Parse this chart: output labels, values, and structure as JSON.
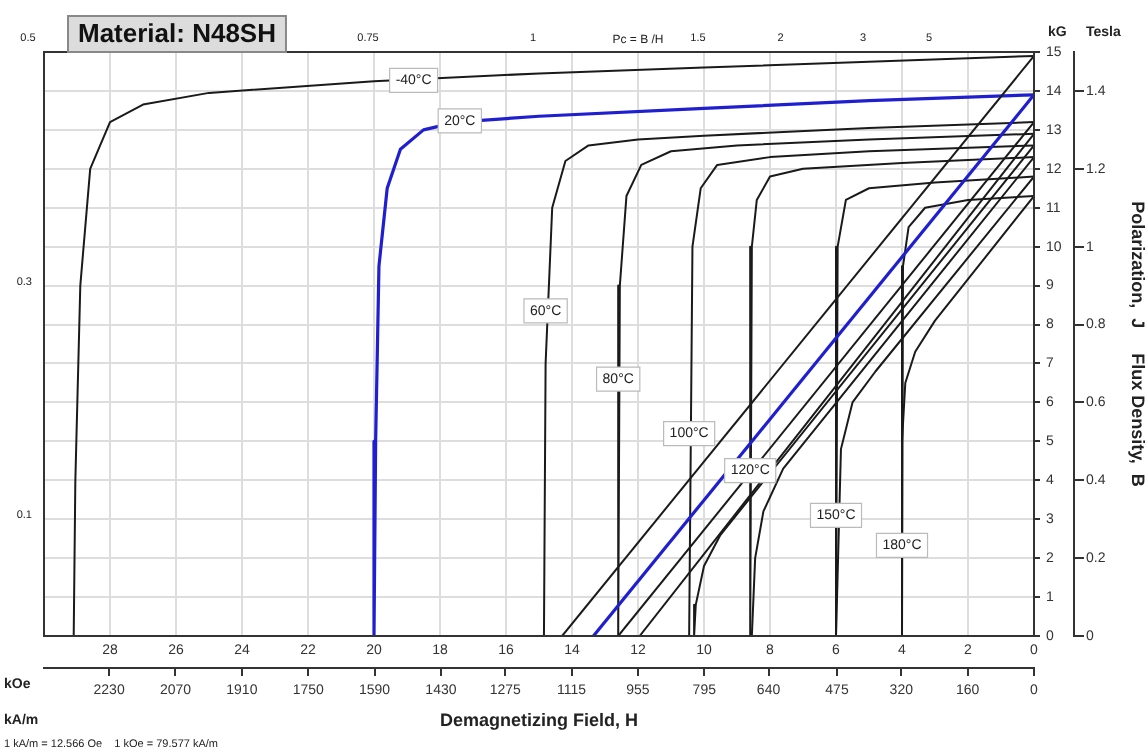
{
  "chart_data": {
    "type": "line",
    "title": "Material: N48SH",
    "xlabel": "Demagnetizing Field, H",
    "y2label": "Polarization,  J     Flux Density,  B",
    "xlim": [
      30,
      0
    ],
    "xticks": [
      28,
      26,
      24,
      22,
      20,
      18,
      16,
      14,
      12,
      10,
      8,
      6,
      4,
      2,
      0
    ],
    "x2lim": [
      2387,
      0
    ],
    "x2ticks": [
      2230,
      2070,
      1910,
      1750,
      1590,
      1430,
      1275,
      1115,
      955,
      795,
      640,
      475,
      320,
      160,
      0
    ],
    "ylim": [
      0,
      15
    ],
    "yticks": [
      0,
      1,
      2,
      3,
      4,
      5,
      6,
      7,
      8,
      9,
      10,
      11,
      12,
      13,
      14,
      15
    ],
    "y2lim": [
      0,
      1.5
    ],
    "y2ticks": [
      0,
      0.2,
      0.4,
      0.6,
      0.8,
      1.0,
      1.2,
      1.4
    ],
    "grid": true,
    "legend": false,
    "marker": "none",
    "line_style": "solid",
    "series": [
      {
        "color": "#1a1a1a",
        "x": [
          0,
          5,
          10,
          15,
          20,
          25,
          27,
          28,
          28.6,
          28.9,
          29.05,
          29.1
        ],
        "values": [
          14.9,
          14.75,
          14.6,
          14.45,
          14.25,
          13.95,
          13.65,
          13.2,
          12,
          9,
          4,
          0
        ]
      },
      {
        "color": "#1a1a1a",
        "x": [
          0,
          14.3
        ],
        "values": [
          14.9,
          0
        ]
      },
      {
        "color": "#1f1fd0",
        "x": [
          0,
          5,
          10,
          15,
          17.5,
          18.5,
          19.2,
          19.6,
          19.85,
          19.95,
          20
        ],
        "values": [
          13.9,
          13.75,
          13.55,
          13.35,
          13.2,
          13.0,
          12.5,
          11.5,
          9.5,
          5,
          0
        ]
      },
      {
        "color": "#1f1fd0",
        "x": [
          0,
          13.35
        ],
        "values": [
          13.9,
          0
        ]
      },
      {
        "color": "#1a1a1a",
        "x": [
          0,
          5,
          10,
          12,
          13.5,
          14.2,
          14.6,
          14.8,
          14.85
        ],
        "values": [
          13.2,
          13.05,
          12.85,
          12.75,
          12.6,
          12.2,
          11,
          7,
          0
        ]
      },
      {
        "color": "#1a1a1a",
        "x": [
          0,
          12.6
        ],
        "values": [
          13.2,
          0
        ]
      },
      {
        "color": "#1a1a1a",
        "x": [
          0,
          5,
          9,
          11,
          11.9,
          12.35,
          12.55,
          12.6
        ],
        "values": [
          12.9,
          12.75,
          12.6,
          12.45,
          12.1,
          11.3,
          9,
          0
        ]
      },
      {
        "color": "#1a1a1a",
        "x": [
          0,
          11.95
        ],
        "values": [
          12.9,
          0
        ]
      },
      {
        "color": "#1a1a1a",
        "x": [
          0,
          5,
          8,
          9.6,
          10.1,
          10.35,
          10.45
        ],
        "values": [
          12.6,
          12.45,
          12.3,
          12.1,
          11.5,
          10,
          0
        ]
      },
      {
        "color": "#1a1a1a",
        "x": [
          0,
          9.5,
          10.0,
          10.25,
          10.3
        ],
        "values": [
          12.6,
          2.6,
          1.8,
          0.8,
          0
        ]
      },
      {
        "color": "#1a1a1a",
        "x": [
          0,
          4,
          7,
          8.0,
          8.4,
          8.55,
          8.6
        ],
        "values": [
          12.3,
          12.15,
          12.0,
          11.8,
          11.2,
          10,
          0
        ]
      },
      {
        "color": "#1a1a1a",
        "x": [
          0,
          7.6,
          8.2,
          8.45,
          8.55
        ],
        "values": [
          12.3,
          4.3,
          3.2,
          2,
          0
        ]
      },
      {
        "color": "#1a1a1a",
        "x": [
          0,
          3,
          5,
          5.7,
          5.95,
          6.0
        ],
        "values": [
          11.8,
          11.65,
          11.5,
          11.2,
          10,
          0
        ]
      },
      {
        "color": "#1a1a1a",
        "x": [
          0,
          4.8,
          5.5,
          5.85,
          6.0
        ],
        "values": [
          11.8,
          6.8,
          6.0,
          4.8,
          0
        ]
      },
      {
        "color": "#1a1a1a",
        "x": [
          0,
          2,
          3.3,
          3.8,
          3.97,
          4.0
        ],
        "values": [
          11.3,
          11.2,
          11.0,
          10.5,
          9.5,
          0
        ]
      },
      {
        "color": "#1a1a1a",
        "x": [
          0,
          3.0,
          3.6,
          3.9,
          4.0,
          4.0
        ],
        "values": [
          11.3,
          8.1,
          7.3,
          6.5,
          5,
          0
        ]
      }
    ],
    "annotations": [
      "kOe",
      "kA/m",
      "kG",
      "Tesla",
      "1 kA/m = 12.566 Oe    1 kOe = 79.577 kA/m",
      "Pc = B /H",
      "0.5",
      "0.75",
      "1",
      "1.5",
      "2",
      "3",
      "5",
      "0.3",
      "0.1",
      {
        "text": "-40°C",
        "x": 18.8,
        "y": 14.27
      },
      {
        "text": "20°C",
        "x": 17.4,
        "y": 13.23
      },
      {
        "text": "60°C",
        "x": 14.8,
        "y": 8.35
      },
      {
        "text": "80°C",
        "x": 12.6,
        "y": 6.6
      },
      {
        "text": "100°C",
        "x": 10.45,
        "y": 5.2
      },
      {
        "text": "120°C",
        "x": 8.6,
        "y": 4.25
      },
      {
        "text": "150°C",
        "x": 6.0,
        "y": 3.1
      },
      {
        "text": "180°C",
        "x": 4.0,
        "y": 2.33
      }
    ]
  }
}
